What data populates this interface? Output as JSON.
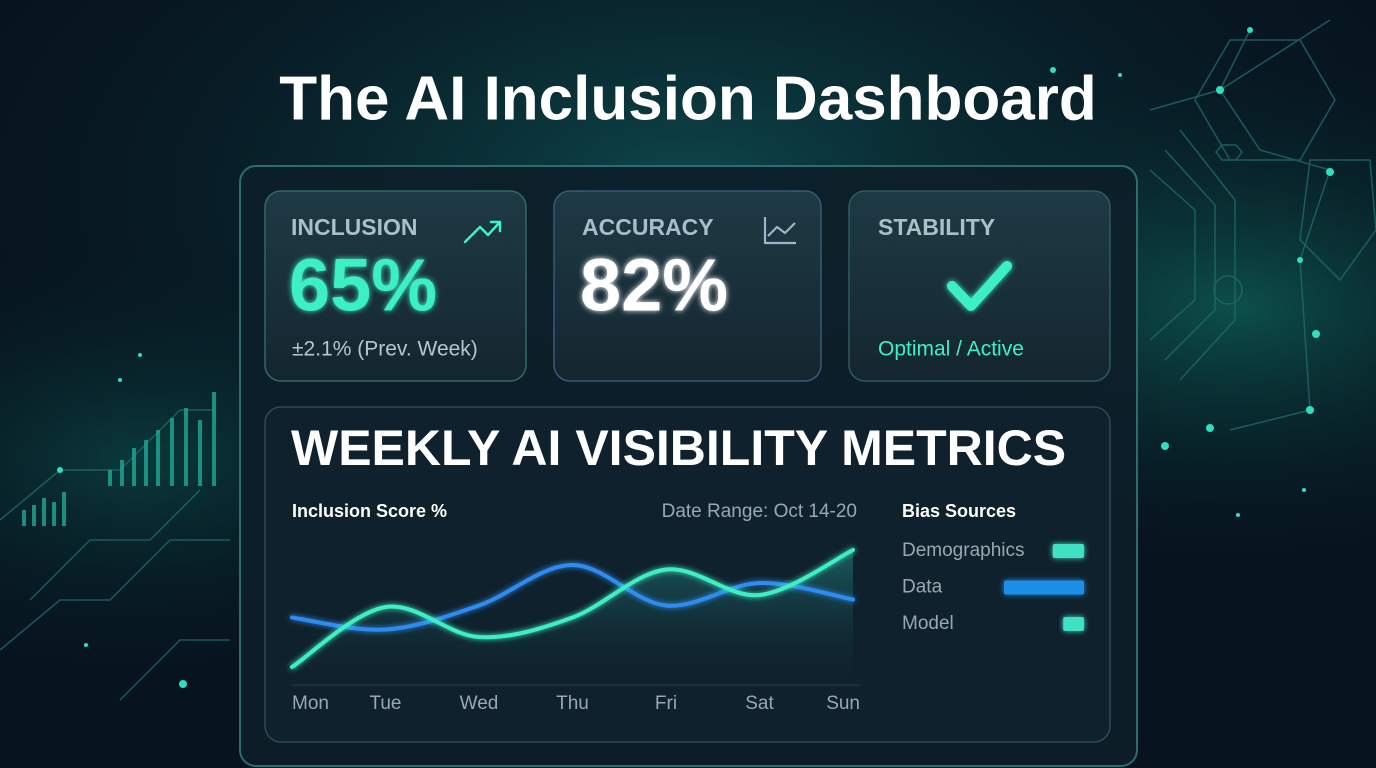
{
  "header": {
    "title": "The AI Inclusion Dashboard"
  },
  "cards": [
    {
      "label": "INCLUSION",
      "value": "65%",
      "note": "±2.1% (Prev. Week)"
    },
    {
      "label": "ACCURACY",
      "value": "82%"
    },
    {
      "label": "STABILITY",
      "status": "Optimal / Active"
    }
  ],
  "weekly": {
    "title": "WEEKLY AI VISIBILITY METRICS",
    "chart": {
      "type": "line",
      "title": "Inclusion Score %",
      "subtitle": "Date Range: Oct 14-20",
      "categories": [
        "Mon",
        "Tue",
        "Wed",
        "Thu",
        "Fri",
        "Sat",
        "Sun"
      ],
      "ylim": [
        0,
        100
      ],
      "series": [
        {
          "color": "#3ef0c4",
          "values": [
            12,
            52,
            32,
            45,
            77,
            60,
            90
          ]
        },
        {
          "color": "#2f8cf0",
          "values": [
            45,
            37,
            53,
            80,
            53,
            68,
            57
          ]
        }
      ]
    },
    "bias": {
      "type": "bar",
      "title": "Bias Sources",
      "categories": [
        "Demographics",
        "Data",
        "Model"
      ],
      "values": [
        39,
        100,
        26
      ],
      "colors": [
        "#3fe0c4",
        "#1e8fe8",
        "#3fe0c4"
      ],
      "xlim": [
        0,
        100
      ]
    }
  }
}
